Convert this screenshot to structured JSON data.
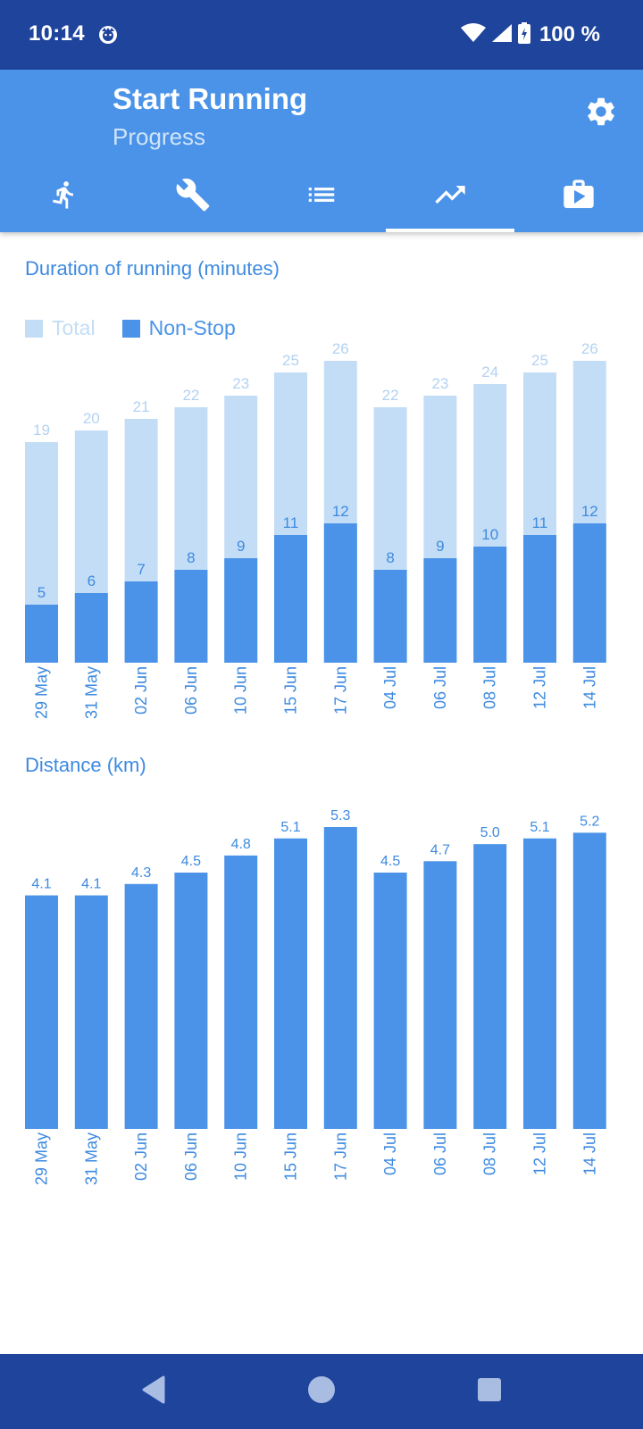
{
  "status_bar": {
    "time": "10:14",
    "battery_text": "100 %"
  },
  "header": {
    "title": "Start Running",
    "subtitle": "Progress",
    "tabs": [
      {
        "icon": "running-man-icon",
        "active": false
      },
      {
        "icon": "wrench-icon",
        "active": false
      },
      {
        "icon": "list-icon",
        "active": false
      },
      {
        "icon": "trending-up-icon",
        "active": true
      },
      {
        "icon": "play-store-bag-icon",
        "active": false
      }
    ]
  },
  "colors": {
    "header_blue": "#4a93e8",
    "status_blue": "#1f449c",
    "bar_dark": "#4a93e8",
    "bar_light": "#c4ddf6",
    "label_light": "#b3d2f2",
    "label_dark": "#3d8ae0"
  },
  "chart_data": [
    {
      "type": "bar",
      "title": "Duration of running (minutes)",
      "categories": [
        "29 May",
        "31 May",
        "02 Jun",
        "06 Jun",
        "10 Jun",
        "15 Jun",
        "17 Jun",
        "04 Jul",
        "06 Jul",
        "08 Jul",
        "12 Jul",
        "14 Jul"
      ],
      "series": [
        {
          "name": "Total",
          "values": [
            19,
            20,
            21,
            22,
            23,
            25,
            26,
            22,
            23,
            24,
            25,
            26
          ]
        },
        {
          "name": "Non-Stop",
          "values": [
            5,
            6,
            7,
            8,
            9,
            11,
            12,
            8,
            9,
            10,
            11,
            12
          ]
        }
      ],
      "legend_position": "top-left",
      "ylim": [
        0,
        26
      ]
    },
    {
      "type": "bar",
      "title": "Distance (km)",
      "categories": [
        "29 May",
        "31 May",
        "02 Jun",
        "06 Jun",
        "10 Jun",
        "15 Jun",
        "17 Jun",
        "04 Jul",
        "06 Jul",
        "08 Jul",
        "12 Jul",
        "14 Jul"
      ],
      "values": [
        4.1,
        4.1,
        4.3,
        4.5,
        4.8,
        5.1,
        5.3,
        4.5,
        4.7,
        5.0,
        5.1,
        5.2
      ],
      "value_labels": [
        "4.1",
        "4.1",
        "4.3",
        "4.5",
        "4.8",
        "5.1",
        "5.3",
        "4.5",
        "4.7",
        "5.0",
        "5.1",
        "5.2"
      ],
      "ylim": [
        0,
        5.3
      ]
    }
  ]
}
